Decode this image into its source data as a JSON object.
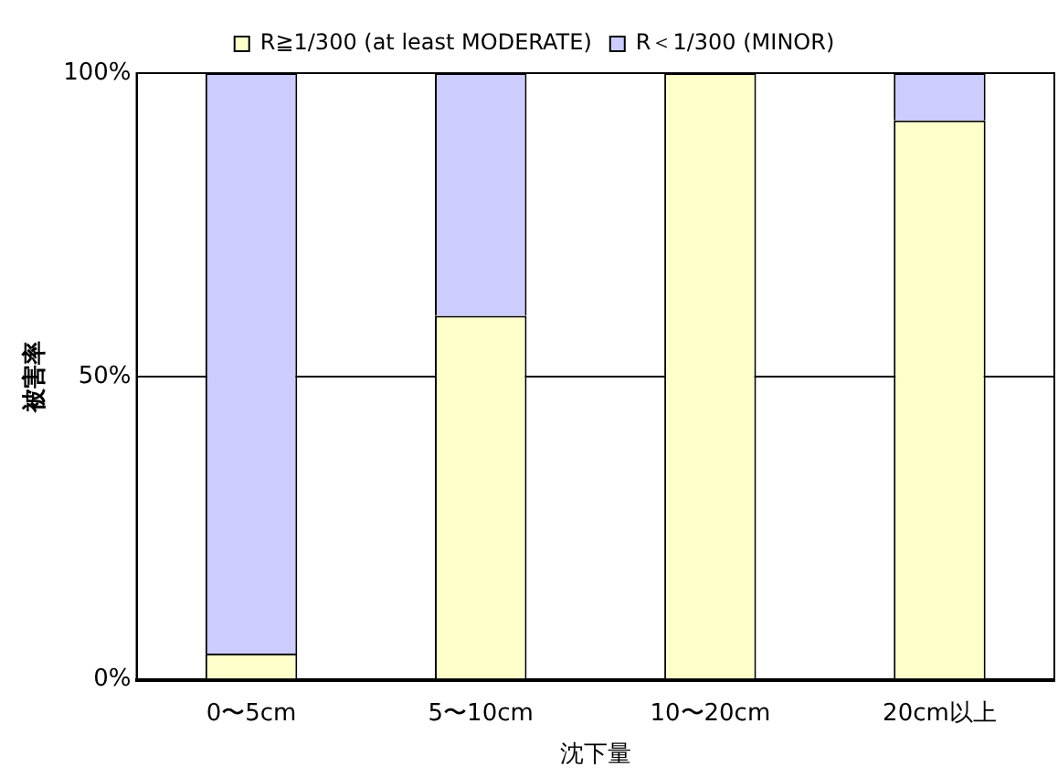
{
  "chart_data": {
    "type": "bar",
    "stacked": true,
    "categories": [
      "0〜5cm",
      "5〜10cm",
      "10〜20cm",
      "20cm以上"
    ],
    "series": [
      {
        "name": "R≧1/300 (at least MODERATE)",
        "color": "#ffffcc",
        "values": [
          4.3,
          60,
          100,
          92.2
        ]
      },
      {
        "name": "R＜1/300 (MINOR)",
        "color": "#ccccff",
        "values": [
          95.7,
          40,
          0,
          7.8
        ]
      }
    ],
    "xlabel": "沈下量",
    "ylabel": "被害率",
    "ylim": [
      0,
      100
    ],
    "yticks": [
      {
        "value": 0,
        "label": "0%"
      },
      {
        "value": 50,
        "label": "50%"
      },
      {
        "value": 100,
        "label": "100%"
      }
    ],
    "grid": "y",
    "legend": "top"
  }
}
